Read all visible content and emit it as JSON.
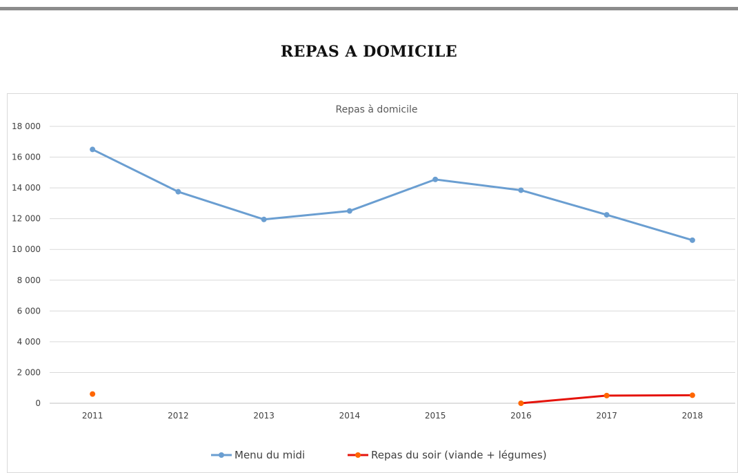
{
  "page": {
    "heading": "REPAS A DOMICILE"
  },
  "chart_data": {
    "type": "line",
    "title": "Repas à domicile",
    "xlabel": "",
    "ylabel": "",
    "categories": [
      "2011",
      "2012",
      "2013",
      "2014",
      "2015",
      "2016",
      "2017",
      "2018"
    ],
    "ylim": [
      0,
      18000
    ],
    "yticks": [
      0,
      2000,
      4000,
      6000,
      8000,
      10000,
      12000,
      14000,
      16000,
      18000
    ],
    "ytick_labels": [
      "0",
      "2 000",
      "4 000",
      "6 000",
      "8 000",
      "10 000",
      "12 000",
      "14 000",
      "16 000",
      "18 000"
    ],
    "grid": "horizontal",
    "legend_position": "bottom",
    "series": [
      {
        "name": "Menu du midi",
        "color": "#6a9ed1",
        "values": [
          16500,
          13750,
          11950,
          12500,
          14550,
          13850,
          12250,
          10600
        ]
      },
      {
        "name": "Repas du soir (viande + légumes)",
        "color": "#e5130b",
        "marker_color": "#ff6600",
        "values": [
          600,
          null,
          null,
          null,
          null,
          0,
          500,
          520
        ]
      }
    ]
  }
}
